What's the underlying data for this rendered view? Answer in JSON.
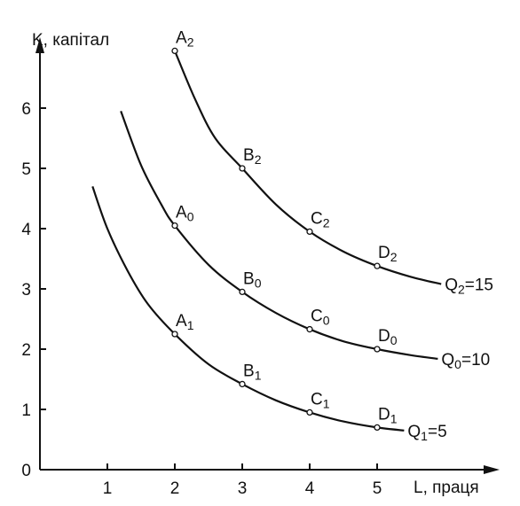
{
  "chart_data": {
    "type": "line",
    "xlabel": "L, праця",
    "ylabel": "K, капітал",
    "xlim": [
      0,
      6
    ],
    "ylim": [
      0,
      7
    ],
    "x_ticks": [
      1,
      2,
      3,
      4,
      5
    ],
    "y_ticks": [
      0,
      1,
      2,
      3,
      4,
      5,
      6
    ],
    "grid": false,
    "series": [
      {
        "name": "Q2=15",
        "label_base": "Q",
        "label_sub": "2",
        "label_rest": "=15",
        "curve_x": [
          2.0,
          2.3,
          2.6,
          3.0,
          3.5,
          4.0,
          4.5,
          5.0,
          5.5,
          5.95
        ],
        "curve_y": [
          6.95,
          6.15,
          5.5,
          5.0,
          4.4,
          3.95,
          3.62,
          3.38,
          3.2,
          3.08
        ],
        "points": [
          {
            "name": "A",
            "sub": "2",
            "x": 2,
            "y": 6.95
          },
          {
            "name": "B",
            "sub": "2",
            "x": 3,
            "y": 5.0
          },
          {
            "name": "C",
            "sub": "2",
            "x": 4,
            "y": 3.95
          },
          {
            "name": "D",
            "sub": "2",
            "x": 5,
            "y": 3.38
          }
        ]
      },
      {
        "name": "Q0=10",
        "label_base": "Q",
        "label_sub": "0",
        "label_rest": "=10",
        "curve_x": [
          1.2,
          1.5,
          1.8,
          2.0,
          2.5,
          3.0,
          3.5,
          4.0,
          4.5,
          5.0,
          5.5,
          5.9
        ],
        "curve_y": [
          5.95,
          5.05,
          4.4,
          4.05,
          3.4,
          2.95,
          2.6,
          2.33,
          2.13,
          2.0,
          1.9,
          1.84
        ],
        "points": [
          {
            "name": "A",
            "sub": "0",
            "x": 2,
            "y": 4.05
          },
          {
            "name": "B",
            "sub": "0",
            "x": 3,
            "y": 2.95
          },
          {
            "name": "C",
            "sub": "0",
            "x": 4,
            "y": 2.33
          },
          {
            "name": "D",
            "sub": "0",
            "x": 5,
            "y": 2.0
          }
        ]
      },
      {
        "name": "Q1=5",
        "label_base": "Q",
        "label_sub": "1",
        "label_rest": "=5",
        "curve_x": [
          0.78,
          1.0,
          1.3,
          1.6,
          2.0,
          2.5,
          3.0,
          3.5,
          4.0,
          4.5,
          5.0,
          5.4
        ],
        "curve_y": [
          4.7,
          4.0,
          3.3,
          2.75,
          2.25,
          1.75,
          1.42,
          1.15,
          0.95,
          0.8,
          0.7,
          0.65
        ],
        "points": [
          {
            "name": "A",
            "sub": "1",
            "x": 2,
            "y": 2.25
          },
          {
            "name": "B",
            "sub": "1",
            "x": 3,
            "y": 1.42
          },
          {
            "name": "C",
            "sub": "1",
            "x": 4,
            "y": 0.95
          },
          {
            "name": "D",
            "sub": "1",
            "x": 5,
            "y": 0.7
          }
        ]
      }
    ]
  }
}
